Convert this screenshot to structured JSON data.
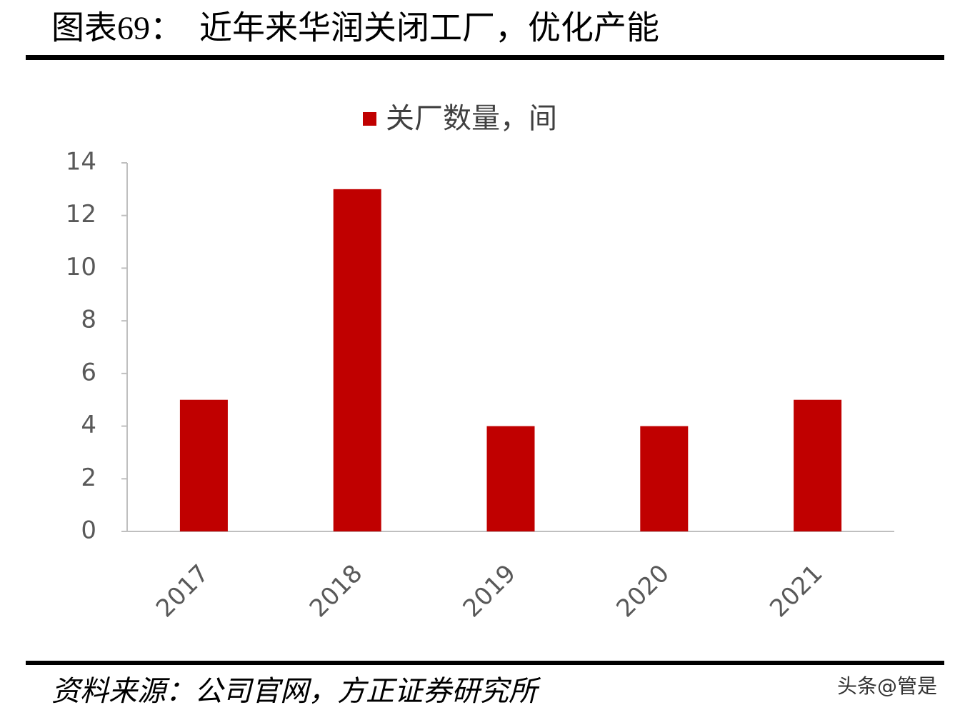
{
  "chart_data": {
    "type": "bar",
    "title": "图表69：  近年来华润关闭工厂，优化产能",
    "legend": "关厂数量，间",
    "categories": [
      "2017",
      "2018",
      "2019",
      "2020",
      "2021"
    ],
    "values": [
      5,
      13,
      4,
      4,
      5
    ],
    "color": "#c00000",
    "ylim": [
      0,
      14
    ],
    "yticks": [
      0,
      2,
      4,
      6,
      8,
      10,
      12,
      14
    ],
    "grid": false,
    "source": "资料来源：公司官网，方正证券研究所",
    "watermark": "头条@管是"
  }
}
